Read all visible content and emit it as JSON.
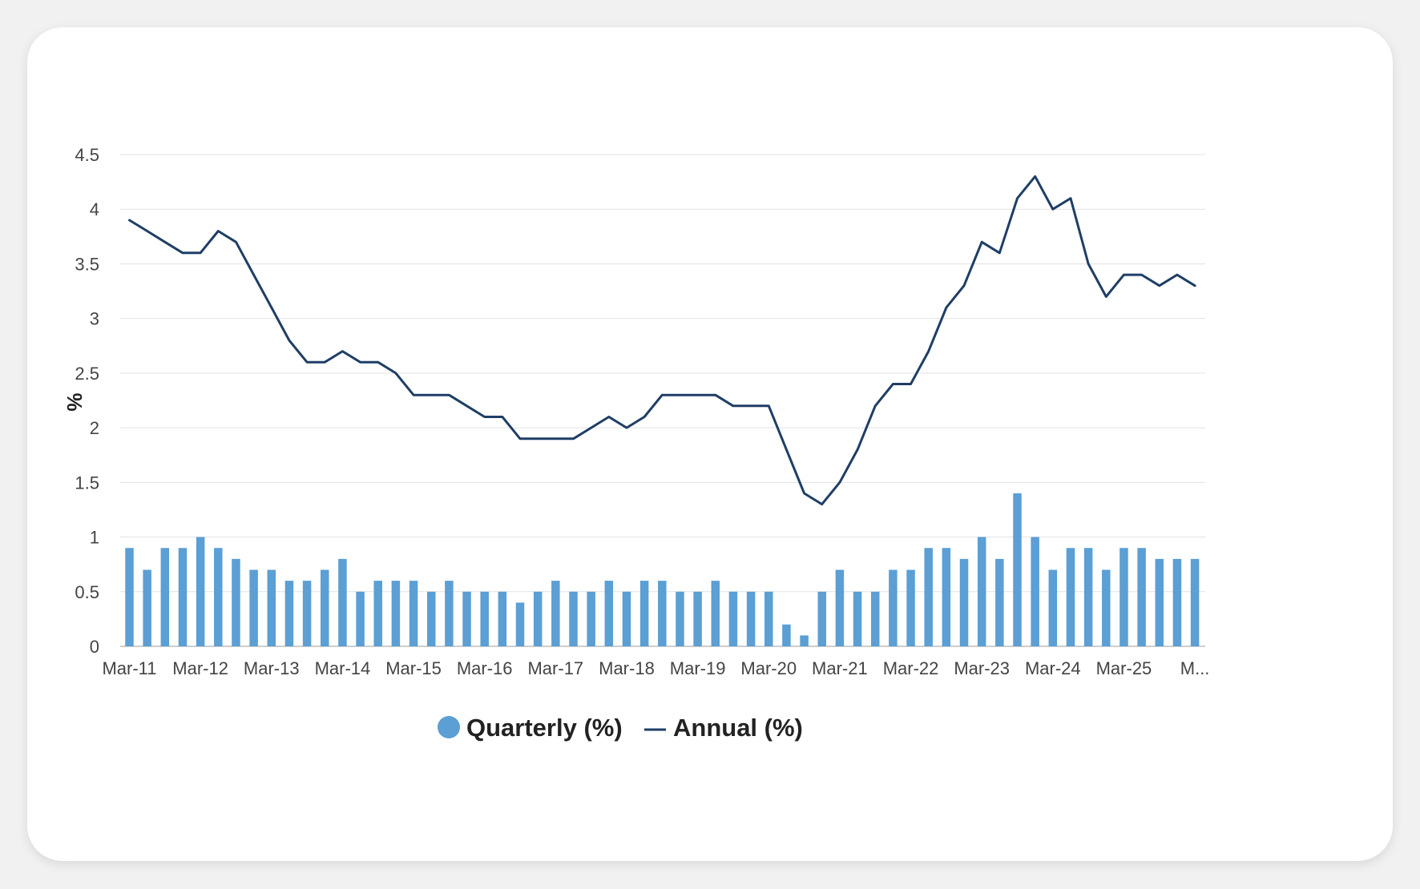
{
  "chart_data": {
    "type": "bar",
    "title": "",
    "xlabel": "",
    "ylabel": "%",
    "ylim": [
      0,
      4.5
    ],
    "yticks": [
      "0",
      "0.5",
      "1",
      "1.5",
      "2",
      "2.5",
      "3",
      "3.5",
      "4",
      "4.5"
    ],
    "grid": true,
    "legend_position": "bottom",
    "xtick_labels": [
      "Mar-11",
      "Mar-12",
      "Mar-13",
      "Mar-14",
      "Mar-15",
      "Mar-16",
      "Mar-17",
      "Mar-18",
      "Mar-19",
      "Mar-20",
      "Mar-21",
      "Mar-22",
      "Mar-23",
      "Mar-24",
      "Mar-25",
      "M..."
    ],
    "series": [
      {
        "name": "Quarterly (%)",
        "type": "bar",
        "color": "#5b9fd4",
        "values": [
          0.9,
          0.7,
          0.9,
          0.9,
          1.0,
          0.9,
          0.8,
          0.7,
          0.7,
          0.6,
          0.6,
          0.7,
          0.8,
          0.5,
          0.6,
          0.6,
          0.6,
          0.5,
          0.6,
          0.5,
          0.5,
          0.5,
          0.4,
          0.5,
          0.6,
          0.5,
          0.5,
          0.6,
          0.5,
          0.6,
          0.6,
          0.5,
          0.5,
          0.6,
          0.5,
          0.5,
          0.5,
          0.2,
          0.1,
          0.5,
          0.7,
          0.5,
          0.5,
          0.7,
          0.7,
          0.9,
          0.9,
          0.8,
          1.0,
          0.8,
          1.4,
          1.0,
          0.7,
          0.9,
          0.9,
          0.7,
          0.9,
          0.9,
          0.8,
          0.8,
          0.8
        ]
      },
      {
        "name": "Annual (%)",
        "type": "line",
        "color": "#1f3e66",
        "values": [
          3.9,
          3.8,
          3.7,
          3.6,
          3.6,
          3.8,
          3.7,
          3.4,
          3.1,
          2.8,
          2.6,
          2.6,
          2.7,
          2.6,
          2.6,
          2.5,
          2.3,
          2.3,
          2.3,
          2.2,
          2.1,
          2.1,
          1.9,
          1.9,
          1.9,
          1.9,
          2.0,
          2.1,
          2.0,
          2.1,
          2.3,
          2.3,
          2.3,
          2.3,
          2.2,
          2.2,
          2.2,
          1.8,
          1.4,
          1.3,
          1.5,
          1.8,
          2.2,
          2.4,
          2.4,
          2.7,
          3.1,
          3.3,
          3.7,
          3.6,
          4.1,
          4.3,
          4.0,
          4.1,
          3.5,
          3.2,
          3.4,
          3.4,
          3.3,
          3.4,
          3.3
        ]
      }
    ]
  }
}
